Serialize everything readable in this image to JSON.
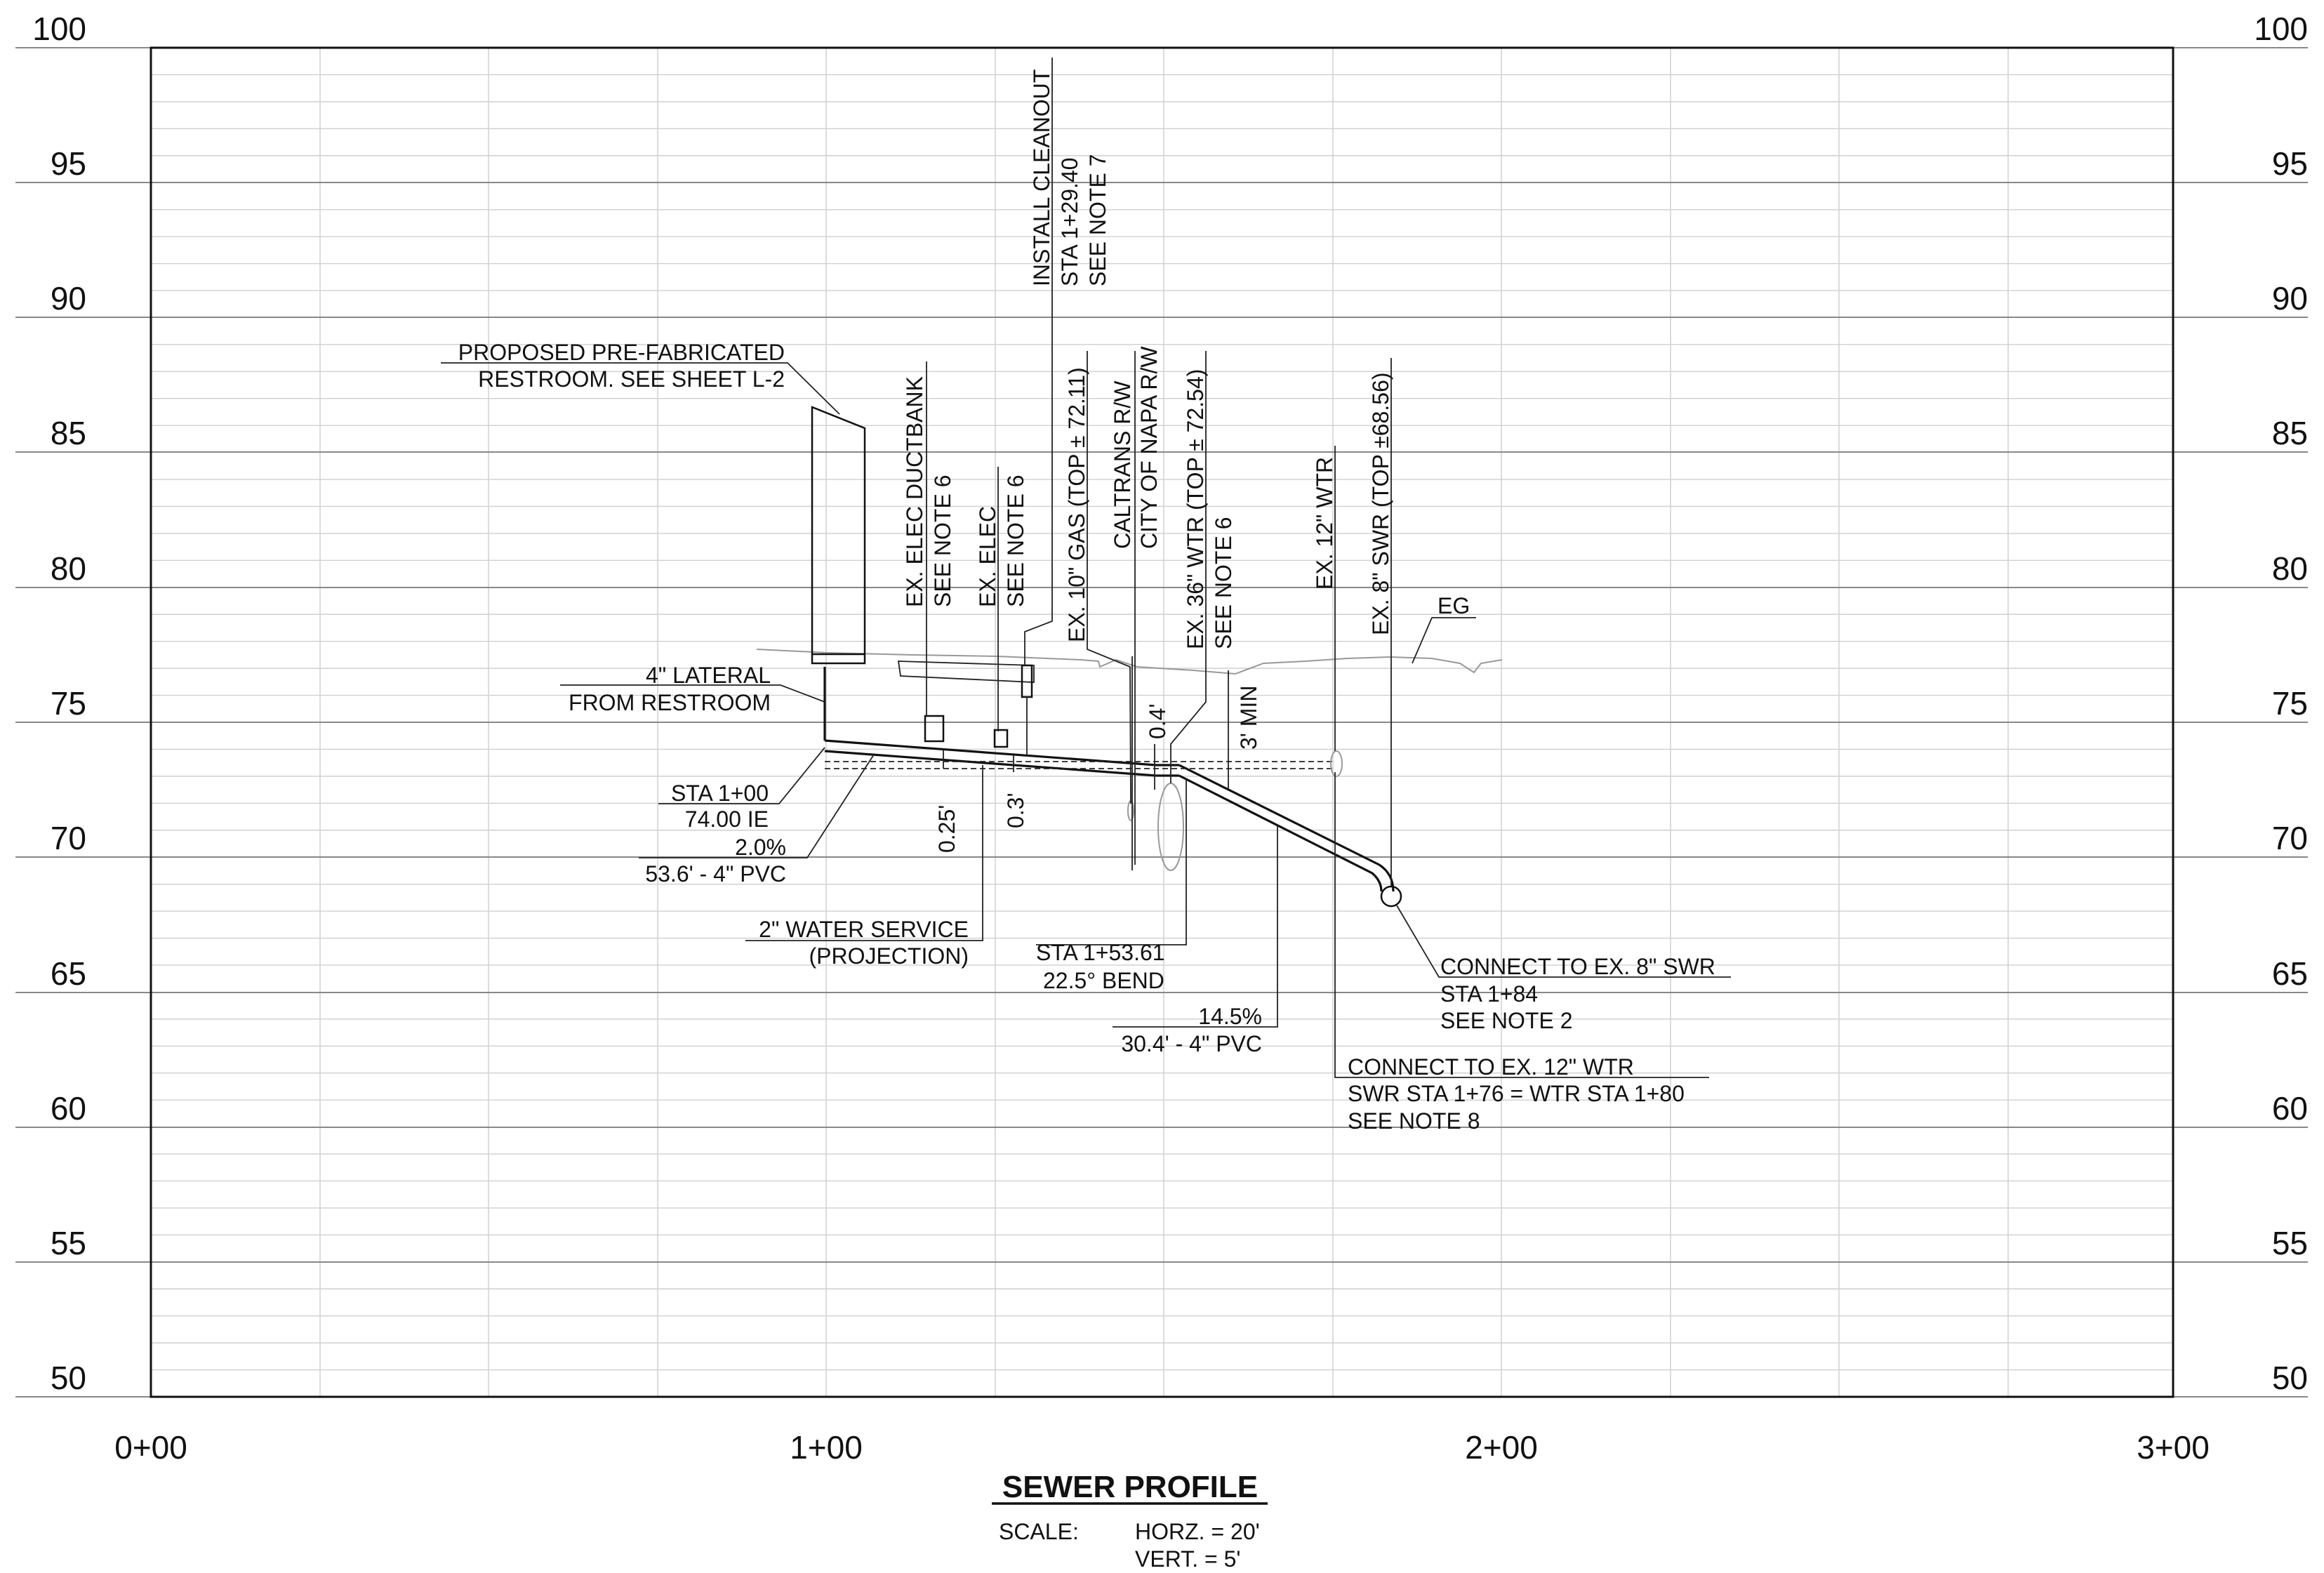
{
  "profile": {
    "title": "SEWER PROFILE",
    "scale_label": "SCALE:",
    "scale_horz": "HORZ. = 20'",
    "scale_vert": "VERT. = 5'",
    "elevations": [
      "100",
      "95",
      "90",
      "85",
      "80",
      "75",
      "70",
      "65",
      "60",
      "55",
      "50"
    ],
    "stations": [
      "0+00",
      "1+00",
      "2+00",
      "3+00"
    ]
  },
  "labels": {
    "restroom_1": "PROPOSED PRE-FABRICATED",
    "restroom_2": "RESTROOM. SEE SHEET L-2",
    "lateral_1": "4\" LATERAL",
    "lateral_2": "FROM RESTROOM",
    "sta_start_1": "STA 1+00",
    "sta_start_2": "74.00 IE",
    "slope1_1": "2.0%",
    "slope1_2": "53.6' - 4\" PVC",
    "water_service_1": "2\" WATER SERVICE",
    "water_service_2": "(PROJECTION)",
    "bend_1": "STA 1+53.61",
    "bend_2": "22.5° BEND",
    "slope2_1": "14.5%",
    "slope2_2": "30.4' - 4\" PVC",
    "connect_swr_1": "CONNECT TO EX. 8\" SWR",
    "connect_swr_2": "STA 1+84",
    "connect_swr_3": "SEE NOTE 2",
    "connect_wtr_1": "CONNECT TO EX. 12\" WTR",
    "connect_wtr_2": "SWR STA 1+76 = WTR STA 1+80",
    "connect_wtr_3": "SEE NOTE 8",
    "eg": "EG",
    "duct_1": "EX. ELEC DUCTBANK",
    "duct_2": "SEE NOTE 6",
    "elec_1": "EX. ELEC",
    "elec_2": "SEE NOTE 6",
    "cleanout_1": "INSTALL CLEANOUT",
    "cleanout_2": "STA 1+29.40",
    "cleanout_3": "SEE NOTE 7",
    "gas": "EX. 10\" GAS (TOP ± 72.11)",
    "rw_1": "CALTRANS R/W",
    "rw_2": "CITY OF NAPA R/W",
    "wtr36_1": "EX. 36\" WTR (TOP ± 72.54)",
    "wtr36_2": "SEE NOTE 6",
    "wtr12": "EX. 12\" WTR",
    "swr8": "EX. 8\" SWR (TOP ±68.56)",
    "dim_025": "0.25'",
    "dim_03": "0.3'",
    "dim_04": "0.4'",
    "dim_3min": "3' MIN"
  }
}
